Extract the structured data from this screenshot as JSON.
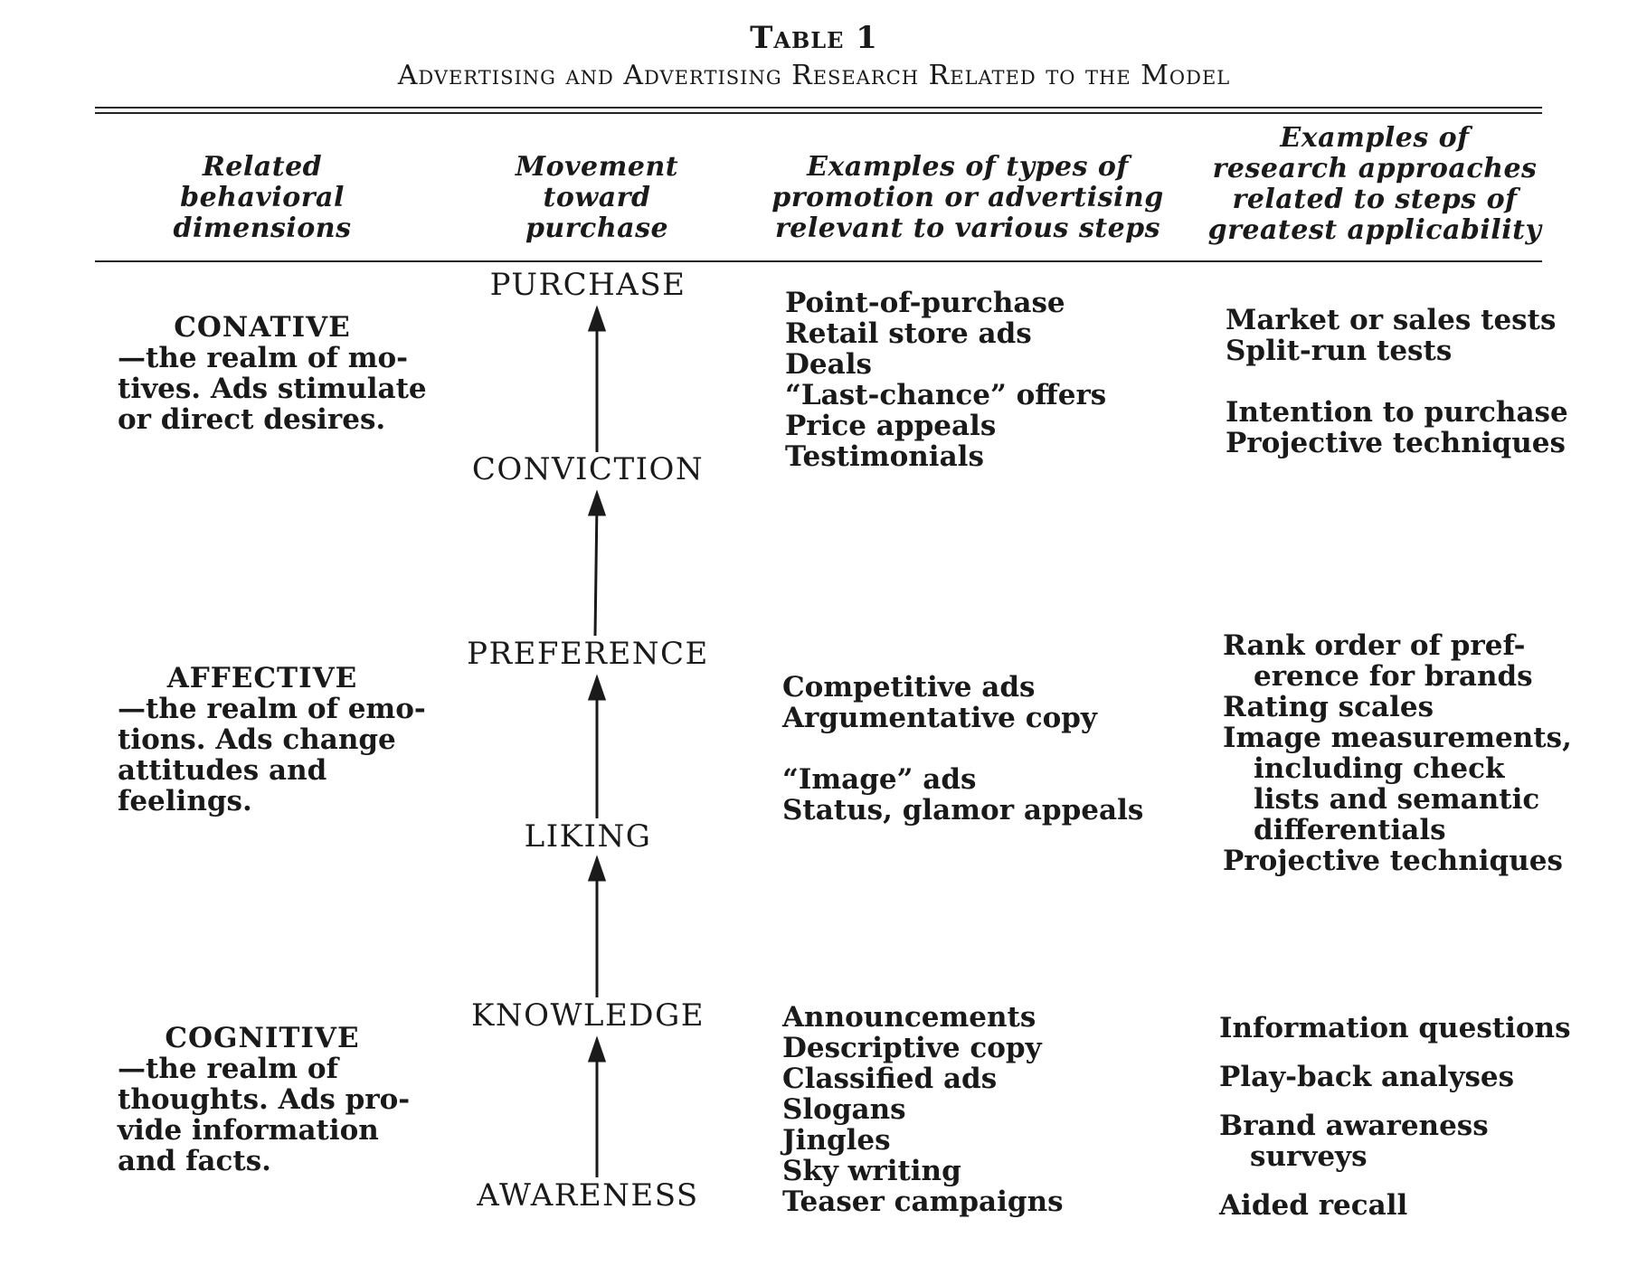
{
  "table_number": "Table 1",
  "table_title": "Advertising and Advertising Research Related to the Model",
  "headers": [
    [
      "Related",
      "behavioral",
      "dimensions"
    ],
    [
      "Movement",
      "toward",
      "purchase"
    ],
    [
      "Examples of types of",
      "promotion or advertising",
      "relevant to various steps"
    ],
    [
      "Examples of",
      "research approaches",
      "related to steps of",
      "greatest applicability"
    ]
  ],
  "dimensions": [
    {
      "name": "CONATIVE",
      "lines": [
        "—the realm of mo-",
        "tives. Ads stimulate",
        "or direct desires."
      ]
    },
    {
      "name": "AFFECTIVE",
      "lines": [
        "—the realm of emo-",
        "tions.  Ads change",
        "attitudes and",
        "feelings."
      ]
    },
    {
      "name": "COGNITIVE",
      "lines": [
        "—the realm of",
        "thoughts. Ads pro-",
        "vide information",
        "and facts."
      ]
    }
  ],
  "stages": [
    "PURCHASE",
    "CONVICTION",
    "PREFERENCE",
    "LIKING",
    "KNOWLEDGE",
    "AWARENESS"
  ],
  "promotion": {
    "conative": [
      "Point-of-purchase",
      "Retail store ads",
      "Deals",
      "“Last-chance” offers",
      "Price appeals",
      "Testimonials"
    ],
    "affective_a": [
      "Competitive ads",
      "Argumentative copy"
    ],
    "affective_b": [
      "“Image” ads",
      "Status, glamor appeals"
    ],
    "cognitive": [
      "Announcements",
      "Descriptive copy",
      "Classified ads",
      "Slogans",
      "Jingles",
      "Sky writing",
      "Teaser campaigns"
    ]
  },
  "research": {
    "conative_a": [
      "Market or sales tests",
      "Split-run tests"
    ],
    "conative_b": [
      "Intention to purchase",
      "Projective techniques"
    ],
    "affective": [
      "Rank order of pref-",
      "erence for brands",
      "Rating scales",
      "Image measurements,",
      "including check",
      "lists and semantic",
      "differentials",
      "Projective techniques"
    ],
    "cognitive": [
      "Information questions",
      "Play-back analyses",
      "Brand awareness",
      "surveys",
      "Aided recall"
    ]
  }
}
